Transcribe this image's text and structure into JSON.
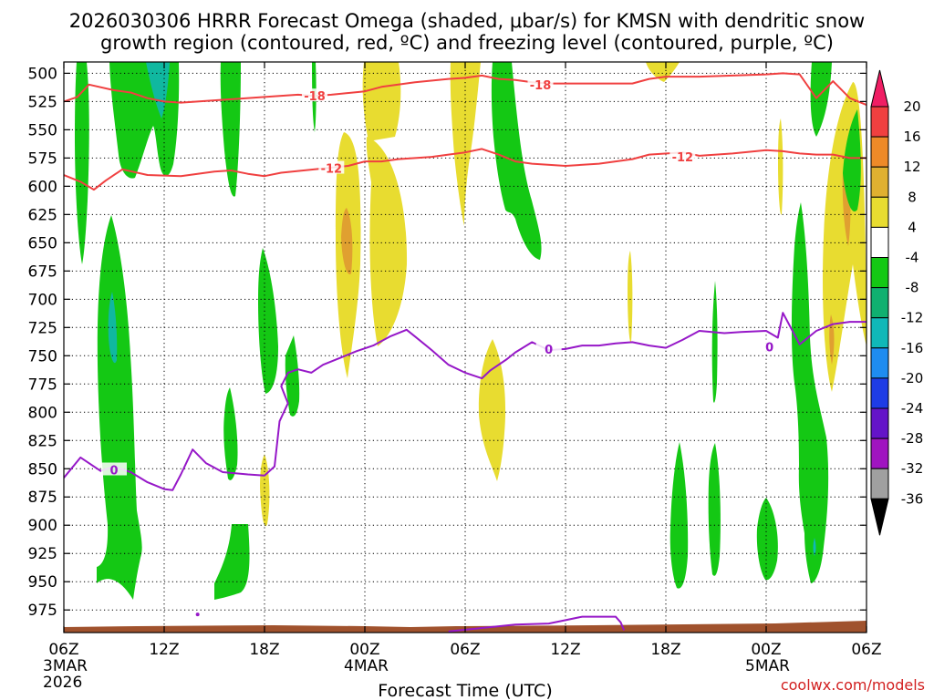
{
  "chart_data": {
    "type": "time-height",
    "title_line1": "2026030306 HRRR Forecast Omega (shaded, μbar/s) for KMSN with dendritic snow",
    "title_line2": "growth region (contoured, red, ºC) and freezing level (contoured, purple, ºC)",
    "xlabel": "Forecast Time (UTC)",
    "credit": "coolwx.com/models",
    "y_ticks": [
      500,
      525,
      550,
      575,
      600,
      625,
      650,
      675,
      700,
      725,
      750,
      775,
      800,
      825,
      850,
      875,
      900,
      925,
      950,
      975
    ],
    "y_range": [
      490,
      995
    ],
    "x_range_hours": [
      0,
      48
    ],
    "x_ticks": [
      {
        "h": 0,
        "label": "06Z",
        "sub1": "3MAR",
        "sub2": "2026"
      },
      {
        "h": 6,
        "label": "12Z",
        "sub1": "",
        "sub2": ""
      },
      {
        "h": 12,
        "label": "18Z",
        "sub1": "",
        "sub2": ""
      },
      {
        "h": 18,
        "label": "00Z",
        "sub1": "4MAR",
        "sub2": ""
      },
      {
        "h": 24,
        "label": "06Z",
        "sub1": "",
        "sub2": ""
      },
      {
        "h": 30,
        "label": "12Z",
        "sub1": "",
        "sub2": ""
      },
      {
        "h": 36,
        "label": "18Z",
        "sub1": "",
        "sub2": ""
      },
      {
        "h": 42,
        "label": "00Z",
        "sub1": "5MAR",
        "sub2": ""
      },
      {
        "h": 48,
        "label": "06Z",
        "sub1": "",
        "sub2": ""
      }
    ],
    "colorbar": {
      "labels": [
        "20",
        "16",
        "12",
        "8",
        "4",
        "-4",
        "-8",
        "-12",
        "-16",
        "-20",
        "-24",
        "-28",
        "-32",
        "-36"
      ],
      "colors": [
        "#f01e64",
        "#f04040",
        "#ee8a28",
        "#e0b030",
        "#e8dc30",
        "#ffffff",
        "#14c814",
        "#10b070",
        "#10b8b8",
        "#1e8cf0",
        "#1e3ce6",
        "#6414c8",
        "#a014c0",
        "#a0a0a0",
        "#000000"
      ]
    },
    "omega_colors": {
      "green": "#14c814",
      "teal": "#10b8a0",
      "yellow": "#e8dc30",
      "orange": "#e0a030",
      "ground": "#a0522d"
    },
    "contour_minus18": {
      "label": "-18",
      "color": "#f04040",
      "points": [
        [
          0,
          525
        ],
        [
          0.8,
          521
        ],
        [
          1.5,
          510
        ],
        [
          3,
          515
        ],
        [
          4,
          517
        ],
        [
          5,
          522
        ],
        [
          6,
          525
        ],
        [
          7,
          526
        ],
        [
          9,
          524
        ],
        [
          12,
          521
        ],
        [
          14,
          519
        ],
        [
          15,
          520
        ],
        [
          16,
          519
        ],
        [
          18,
          516
        ],
        [
          19,
          512
        ],
        [
          21,
          508
        ],
        [
          23,
          505
        ],
        [
          24,
          504
        ],
        [
          25,
          502
        ],
        [
          26,
          505
        ],
        [
          27,
          506
        ],
        [
          28,
          508
        ],
        [
          29,
          509
        ],
        [
          31,
          509
        ],
        [
          34,
          509
        ],
        [
          35,
          505
        ],
        [
          36,
          503
        ],
        [
          38,
          503
        ],
        [
          40,
          502
        ],
        [
          42,
          501
        ],
        [
          43,
          500
        ],
        [
          44,
          501
        ],
        [
          45,
          522
        ],
        [
          46,
          507
        ],
        [
          47,
          522
        ],
        [
          48,
          528
        ]
      ],
      "label_positions": [
        [
          15,
          520
        ],
        [
          28.5,
          510
        ]
      ]
    },
    "contour_minus12": {
      "label": "-12",
      "color": "#f04040",
      "points": [
        [
          0,
          590
        ],
        [
          1,
          596
        ],
        [
          1.8,
          603
        ],
        [
          2.5,
          595
        ],
        [
          3.5,
          585
        ],
        [
          5,
          590
        ],
        [
          7,
          591
        ],
        [
          9,
          587
        ],
        [
          10,
          586
        ],
        [
          11,
          589
        ],
        [
          12,
          591
        ],
        [
          13,
          588
        ],
        [
          15,
          585
        ],
        [
          17,
          582
        ],
        [
          18,
          578
        ],
        [
          19,
          578
        ],
        [
          20,
          576
        ],
        [
          22,
          574
        ],
        [
          23,
          572
        ],
        [
          24,
          570
        ],
        [
          25,
          567
        ],
        [
          26,
          572
        ],
        [
          27,
          578
        ],
        [
          28,
          580
        ],
        [
          30,
          582
        ],
        [
          32,
          580
        ],
        [
          34,
          576
        ],
        [
          35,
          572
        ],
        [
          37,
          570
        ],
        [
          38,
          573
        ],
        [
          40,
          571
        ],
        [
          42,
          568
        ],
        [
          43,
          569
        ],
        [
          44,
          571
        ],
        [
          45,
          572
        ],
        [
          46,
          572
        ],
        [
          47,
          575
        ],
        [
          48,
          575
        ]
      ],
      "label_positions": [
        [
          16,
          584
        ],
        [
          37,
          574
        ]
      ]
    },
    "contour_freezing": {
      "label": "0",
      "color": "#9618c8",
      "points": [
        [
          0,
          858
        ],
        [
          1,
          840
        ],
        [
          1.6,
          846
        ],
        [
          2.2,
          852
        ],
        [
          3,
          848
        ],
        [
          4,
          853
        ],
        [
          5,
          862
        ],
        [
          6,
          868
        ],
        [
          6.5,
          869
        ],
        [
          7,
          855
        ],
        [
          7.7,
          833
        ],
        [
          8.5,
          845
        ],
        [
          9.5,
          853
        ],
        [
          11,
          855
        ],
        [
          12,
          856
        ],
        [
          12.6,
          848
        ],
        [
          12.9,
          808
        ],
        [
          13.4,
          792
        ],
        [
          13,
          777
        ],
        [
          13.4,
          765
        ],
        [
          14,
          762
        ],
        [
          14.8,
          765
        ],
        [
          15.5,
          758
        ],
        [
          16.5,
          752
        ],
        [
          17.5,
          746
        ],
        [
          18.5,
          741
        ],
        [
          19.5,
          733
        ],
        [
          20.5,
          727
        ],
        [
          21,
          733
        ],
        [
          22,
          745
        ],
        [
          23,
          758
        ],
        [
          24,
          765
        ],
        [
          25,
          770
        ],
        [
          25.5,
          763
        ],
        [
          26.5,
          753
        ],
        [
          27,
          747
        ],
        [
          28,
          738
        ],
        [
          29,
          745
        ],
        [
          30,
          744
        ],
        [
          31,
          741
        ],
        [
          32,
          741
        ],
        [
          33,
          739
        ],
        [
          34,
          738
        ],
        [
          35,
          741
        ],
        [
          36,
          743
        ],
        [
          37,
          736
        ],
        [
          38,
          728
        ],
        [
          39.5,
          730
        ],
        [
          40.5,
          729
        ],
        [
          42,
          728
        ],
        [
          42.7,
          734
        ],
        [
          43,
          712
        ],
        [
          44,
          740
        ],
        [
          45,
          728
        ],
        [
          46,
          722
        ],
        [
          47,
          720
        ],
        [
          48,
          720
        ]
      ],
      "label_positions": [
        [
          3,
          851
        ],
        [
          29,
          744
        ],
        [
          42.2,
          742
        ]
      ],
      "surface_points": [
        [
          23,
          994
        ],
        [
          25,
          991
        ],
        [
          27,
          988
        ],
        [
          29,
          987
        ],
        [
          30,
          984
        ],
        [
          31,
          981
        ],
        [
          33,
          981
        ],
        [
          33.3,
          986
        ],
        [
          33.5,
          993
        ]
      ],
      "surface_dot": [
        8,
        979
      ]
    }
  }
}
